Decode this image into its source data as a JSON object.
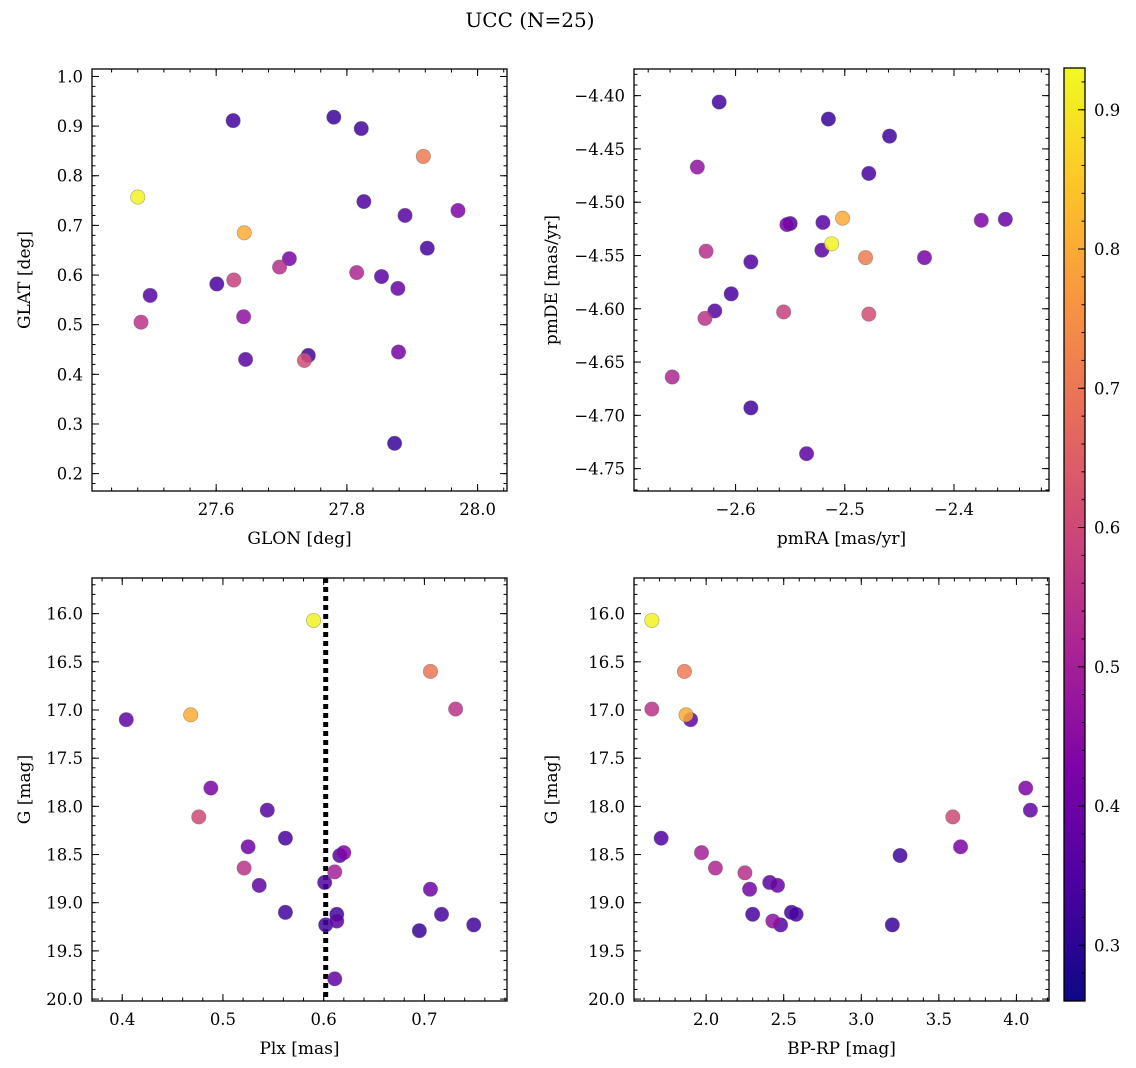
{
  "title": "UCC (N=25)",
  "colorbar": {
    "min": 0.26,
    "max": 0.93,
    "ticks": [
      0.3,
      0.4,
      0.5,
      0.6,
      0.7,
      0.8,
      0.9
    ],
    "tick_labels": [
      "0.3",
      "0.4",
      "0.5",
      "0.6",
      "0.7",
      "0.8",
      "0.9"
    ],
    "colormap": "plasma"
  },
  "chart_data": [
    {
      "type": "scatter",
      "xlabel": "GLON [deg]",
      "ylabel": "GLAT [deg]",
      "xlim": [
        27.41,
        28.045
      ],
      "ylim": [
        0.165,
        1.015
      ],
      "y_inverted": false,
      "xticks": [
        27.6,
        27.8,
        28.0
      ],
      "xtick_labels": [
        "27.6",
        "27.8",
        "28.0"
      ],
      "yticks": [
        0.2,
        0.3,
        0.4,
        0.5,
        0.6,
        0.7,
        0.8,
        0.9,
        1.0
      ],
      "ytick_labels": [
        "0.2",
        "0.3",
        "0.4",
        "0.5",
        "0.6",
        "0.7",
        "0.8",
        "0.9",
        "1.0"
      ],
      "x": [
        27.48,
        27.643,
        27.917,
        27.485,
        27.627,
        27.697,
        27.735,
        27.815,
        27.712,
        27.642,
        27.97,
        27.499,
        27.601,
        27.645,
        27.741,
        27.889,
        27.878,
        27.853,
        27.826,
        27.923,
        27.879,
        27.626,
        27.78,
        27.822,
        27.873
      ],
      "y": [
        0.757,
        0.685,
        0.839,
        0.505,
        0.59,
        0.616,
        0.428,
        0.605,
        0.633,
        0.516,
        0.73,
        0.559,
        0.582,
        0.43,
        0.438,
        0.72,
        0.573,
        0.597,
        0.748,
        0.654,
        0.445,
        0.911,
        0.918,
        0.895,
        0.261
      ],
      "color_values": [
        0.92,
        0.8,
        0.71,
        0.55,
        0.58,
        0.54,
        0.61,
        0.52,
        0.42,
        0.46,
        0.43,
        0.36,
        0.34,
        0.37,
        0.33,
        0.36,
        0.39,
        0.37,
        0.35,
        0.34,
        0.41,
        0.33,
        0.32,
        0.33,
        0.32
      ]
    },
    {
      "type": "scatter",
      "xlabel": "pmRA [mas/yr]",
      "ylabel": "pmDE [mas/yr]",
      "xlim": [
        -2.693,
        -2.313
      ],
      "ylim": [
        -4.771,
        -4.375
      ],
      "y_inverted": false,
      "xticks": [
        -2.6,
        -2.5,
        -2.4
      ],
      "xtick_labels": [
        "−2.6",
        "−2.5",
        "−2.4"
      ],
      "yticks": [
        -4.75,
        -4.7,
        -4.65,
        -4.6,
        -4.55,
        -4.5,
        -4.45,
        -4.4
      ],
      "ytick_labels": [
        "−4.75",
        "−4.70",
        "−4.65",
        "−4.60",
        "−4.55",
        "−4.50",
        "−4.45",
        "−4.40"
      ],
      "x": [
        -2.512,
        -2.502,
        -2.481,
        -2.628,
        -2.556,
        -2.478,
        -2.658,
        -2.627,
        -2.635,
        -2.553,
        -2.427,
        -2.375,
        -2.353,
        -2.52,
        -2.55,
        -2.521,
        -2.586,
        -2.604,
        -2.619,
        -2.586,
        -2.535,
        -2.615,
        -2.515,
        -2.459,
        -2.478
      ],
      "y": [
        -4.539,
        -4.515,
        -4.552,
        -4.609,
        -4.603,
        -4.605,
        -4.664,
        -4.546,
        -4.467,
        -4.521,
        -4.552,
        -4.517,
        -4.516,
        -4.519,
        -4.52,
        -4.545,
        -4.556,
        -4.586,
        -4.602,
        -4.693,
        -4.736,
        -4.406,
        -4.422,
        -4.438,
        -4.473
      ],
      "color_values": [
        0.92,
        0.8,
        0.71,
        0.55,
        0.58,
        0.61,
        0.52,
        0.54,
        0.46,
        0.42,
        0.41,
        0.43,
        0.39,
        0.36,
        0.34,
        0.37,
        0.35,
        0.34,
        0.36,
        0.33,
        0.37,
        0.33,
        0.32,
        0.33,
        0.34
      ]
    },
    {
      "type": "scatter",
      "xlabel": "Plx [mas]",
      "ylabel": "G [mag]",
      "xlim": [
        0.37,
        0.782
      ],
      "ylim": [
        20.02,
        15.63
      ],
      "y_inverted": true,
      "xticks": [
        0.4,
        0.5,
        0.6,
        0.7
      ],
      "xtick_labels": [
        "0.4",
        "0.5",
        "0.6",
        "0.7"
      ],
      "yticks": [
        16.0,
        16.5,
        17.0,
        17.5,
        18.0,
        18.5,
        19.0,
        19.5,
        20.0
      ],
      "ytick_labels": [
        "16.0",
        "16.5",
        "17.0",
        "17.5",
        "18.0",
        "18.5",
        "19.0",
        "19.5",
        "20.0"
      ],
      "vline_x": 0.602,
      "x": [
        0.59,
        0.468,
        0.706,
        0.731,
        0.476,
        0.521,
        0.611,
        0.404,
        0.488,
        0.544,
        0.525,
        0.536,
        0.562,
        0.616,
        0.62,
        0.601,
        0.562,
        0.706,
        0.717,
        0.613,
        0.602,
        0.749,
        0.613,
        0.695,
        0.611
      ],
      "y": [
        16.07,
        17.05,
        16.6,
        16.99,
        18.11,
        18.64,
        18.68,
        17.1,
        17.81,
        18.04,
        18.42,
        18.82,
        18.33,
        18.51,
        18.48,
        18.79,
        19.1,
        18.86,
        19.12,
        19.19,
        19.23,
        19.23,
        19.12,
        19.29,
        19.79
      ],
      "color_values": [
        0.92,
        0.8,
        0.7,
        0.55,
        0.6,
        0.55,
        0.5,
        0.38,
        0.42,
        0.36,
        0.4,
        0.38,
        0.34,
        0.36,
        0.43,
        0.35,
        0.33,
        0.4,
        0.34,
        0.37,
        0.33,
        0.33,
        0.33,
        0.32,
        0.38
      ]
    },
    {
      "type": "scatter",
      "xlabel": "BP-RP [mag]",
      "ylabel": "G [mag]",
      "xlim": [
        1.535,
        4.21
      ],
      "ylim": [
        20.02,
        15.63
      ],
      "y_inverted": true,
      "xticks": [
        2.0,
        2.5,
        3.0,
        3.5,
        4.0
      ],
      "xtick_labels": [
        "2.0",
        "2.5",
        "3.0",
        "3.5",
        "4.0"
      ],
      "yticks": [
        16.0,
        16.5,
        17.0,
        17.5,
        18.0,
        18.5,
        19.0,
        19.5,
        20.0
      ],
      "ytick_labels": [
        "16.0",
        "16.5",
        "17.0",
        "17.5",
        "18.0",
        "18.5",
        "19.0",
        "19.5",
        "20.0"
      ],
      "x": [
        1.65,
        1.86,
        1.87,
        1.65,
        1.9,
        1.71,
        1.97,
        2.06,
        2.25,
        2.28,
        2.41,
        2.46,
        2.3,
        2.43,
        2.48,
        2.55,
        2.58,
        3.2,
        3.25,
        3.59,
        3.64,
        4.06,
        4.09
      ],
      "y": [
        16.07,
        16.6,
        17.05,
        16.99,
        17.1,
        18.33,
        18.48,
        18.64,
        18.69,
        18.86,
        18.79,
        18.82,
        19.12,
        19.19,
        19.23,
        19.1,
        19.12,
        19.23,
        18.51,
        18.11,
        18.42,
        17.81,
        18.04
      ],
      "color_values": [
        0.92,
        0.71,
        0.8,
        0.55,
        0.38,
        0.35,
        0.5,
        0.52,
        0.54,
        0.41,
        0.37,
        0.39,
        0.34,
        0.46,
        0.36,
        0.33,
        0.34,
        0.32,
        0.33,
        0.6,
        0.42,
        0.43,
        0.38
      ]
    }
  ]
}
